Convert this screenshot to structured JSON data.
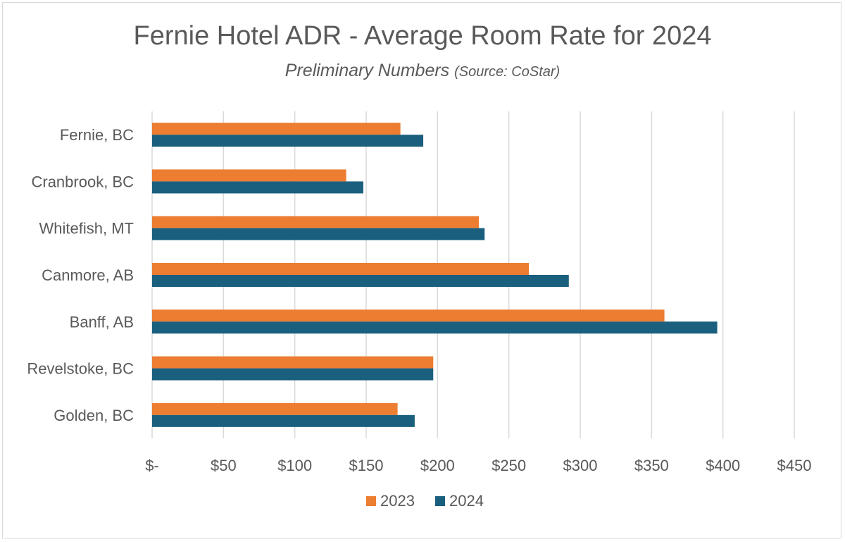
{
  "chart_data": {
    "type": "bar",
    "orientation": "horizontal",
    "title": "Fernie Hotel ADR - Average Room Rate for 2024",
    "subtitle_main": "Preliminary Numbers",
    "subtitle_source": "(Source: CoStar)",
    "categories": [
      "Fernie, BC",
      "Cranbrook, BC",
      "Whitefish, MT",
      "Canmore, AB",
      "Banff, AB",
      "Revelstoke, BC",
      "Golden, BC"
    ],
    "series": [
      {
        "name": "2023",
        "color": "#ed7d31",
        "values": [
          174,
          136,
          229,
          264,
          359,
          197,
          172
        ]
      },
      {
        "name": "2024",
        "color": "#1b5f7e",
        "values": [
          190,
          148,
          233,
          292,
          396,
          197,
          184
        ]
      }
    ],
    "xlim": [
      0,
      450
    ],
    "ticks": [
      0,
      50,
      100,
      150,
      200,
      250,
      300,
      350,
      400,
      450
    ],
    "tick_labels": [
      "$-",
      "$50",
      "$100",
      "$150",
      "$200",
      "$250",
      "$300",
      "$350",
      "$400",
      "$450"
    ],
    "grid": true,
    "legend_position": "bottom"
  }
}
